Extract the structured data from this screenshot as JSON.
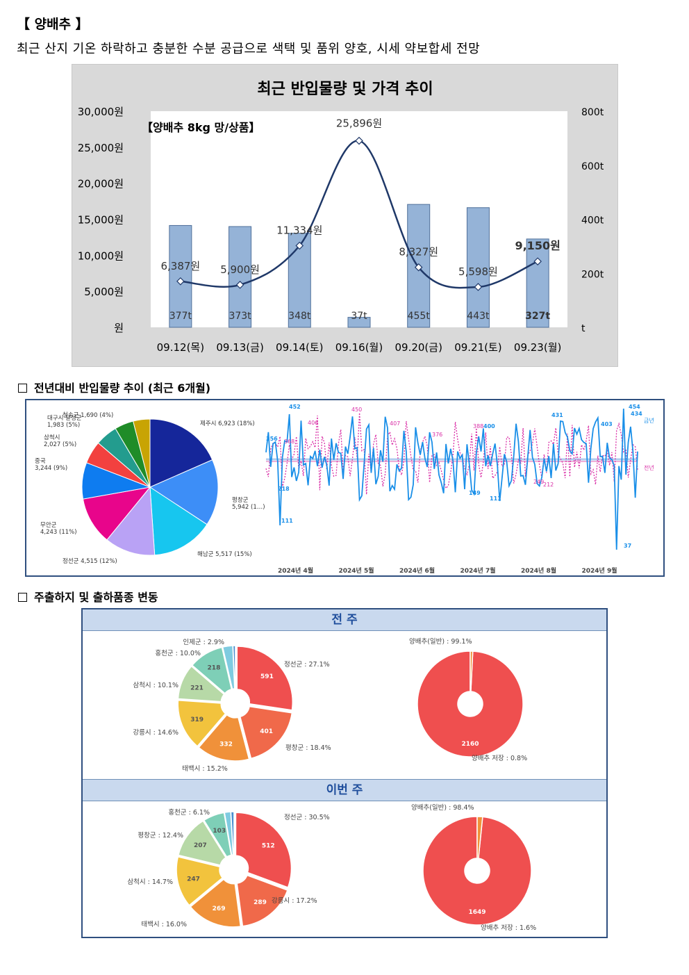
{
  "header": {
    "title": "【 양배추 】",
    "subtitle": "최근 산지 기온 하락하고 충분한 수분 공급으로 색택 및 품위 양호, 시세 약보합세 전망"
  },
  "chart_data": [
    {
      "type": "bar",
      "title": "최근 반입물량 및 가격 추이",
      "inset_label": "【양배추 8kg 망/상품】",
      "categories": [
        "09.12(목)",
        "09.13(금)",
        "09.14(토)",
        "09.16(월)",
        "09.20(금)",
        "09.21(토)",
        "09.23(월)"
      ],
      "y_left_ticks": [
        "30,000원",
        "25,000원",
        "20,000원",
        "15,000원",
        "10,000원",
        "5,000원",
        "원"
      ],
      "y_right_ticks": [
        "800t",
        "600t",
        "400t",
        "200t",
        "t"
      ],
      "ylim_left": [
        0,
        30000
      ],
      "ylim_right": [
        0,
        800
      ],
      "series": [
        {
          "name": "반입물량",
          "axis": "right",
          "type": "bar",
          "values": [
            377,
            373,
            348,
            37,
            455,
            443,
            327
          ],
          "labels": [
            "377t",
            "373t",
            "348t",
            "37t",
            "455t",
            "443t",
            "327t"
          ],
          "color": "#95b3d7"
        },
        {
          "name": "가격",
          "axis": "left",
          "type": "line",
          "values": [
            6387,
            5900,
            11334,
            25896,
            8327,
            5598,
            9150
          ],
          "labels": [
            "6,387원",
            "5,900원",
            "11,334원",
            "25,896원",
            "8,327원",
            "5,598원",
            "9,150원"
          ],
          "color": "#1f3868"
        }
      ]
    },
    {
      "type": "pie",
      "slices": [
        {
          "label": "제주시 6,923 (18%)",
          "value": 6923,
          "color": "#15269a"
        },
        {
          "label": "평창군 5,942 (1…)",
          "value": 5942,
          "color": "#3d8ef7"
        },
        {
          "label": "해남군 5,517 (15%)",
          "value": 5517,
          "color": "#17c6ef"
        },
        {
          "label": "정선군 4,515 (12%)",
          "value": 4515,
          "color": "#b9a2f5"
        },
        {
          "label": "무안군 4,243 (11%)",
          "value": 4243,
          "color": "#e8058b"
        },
        {
          "label": "중국 3,244 (9%)",
          "value": 3244,
          "color": "#0e7cf0"
        },
        {
          "label": "삼척시 2,027 (5%)",
          "value": 2027,
          "color": "#f2413f"
        },
        {
          "label": "대구시 달성군 1,983 (5%)",
          "value": 1983,
          "color": "#239c8e"
        },
        {
          "label": "청송군 1,690 (4%)",
          "value": 1690,
          "color": "#1f8c28"
        },
        {
          "label": "",
          "value": 1500,
          "color": "#c8a404"
        }
      ]
    },
    {
      "type": "line",
      "x_labels": [
        "2024년 4월",
        "2024년 5월",
        "2024년 6월",
        "2024년 7월",
        "2024년 8월",
        "2024년 9월"
      ],
      "series": [
        {
          "name": "금년",
          "color": "#1a8fe8",
          "labels": [
            "356",
            "452",
            "218",
            "111",
            "400",
            "149",
            "111",
            "431",
            "403",
            "454",
            "434",
            "37"
          ]
        },
        {
          "name": "전년",
          "color": "#d92ea6",
          "labels": [
            "368",
            "406",
            "450",
            "407",
            "376",
            "388",
            "249",
            "212"
          ]
        }
      ]
    }
  ],
  "sections": {
    "trend_title": "전년대비 반입물량 추이 (최근 6개월)",
    "ship_title": "주출하지 및 출하품종 변동"
  },
  "shipments": {
    "last_week": {
      "band": "전 주",
      "origin": [
        {
          "label": "정선군 : 27.1%",
          "value": 591,
          "color": "#ef4f4f"
        },
        {
          "label": "평창군 : 18.4%",
          "value": 401,
          "color": "#f0694a"
        },
        {
          "label": "태백시 : 15.2%",
          "value": 332,
          "color": "#f0913a"
        },
        {
          "label": "강릉시 : 14.6%",
          "value": 319,
          "color": "#f2c33d"
        },
        {
          "label": "삼척시 : 10.1%",
          "value": 221,
          "color": "#b7d9a7"
        },
        {
          "label": "홍천군 : 10.0%",
          "value": 218,
          "color": "#7ecfb7"
        },
        {
          "label": "인제군 : 2.9%",
          "value": 63,
          "color": "#7fcbe0"
        },
        {
          "label": "",
          "value": 15,
          "color": "#4a8fcf"
        }
      ],
      "variety": [
        {
          "label": "양배추(일반) : 99.1%",
          "value": 2160,
          "color": "#ef4f4f"
        },
        {
          "label": "양배추 저장 : 0.8%",
          "value": 17,
          "color": "#f0913a"
        }
      ]
    },
    "this_week": {
      "band": "이번 주",
      "origin": [
        {
          "label": "정선군 : 30.5%",
          "value": 512,
          "color": "#ef4f4f"
        },
        {
          "label": "강릉시 : 17.2%",
          "value": 289,
          "color": "#f0694a"
        },
        {
          "label": "태백시 : 16.0%",
          "value": 269,
          "color": "#f0913a"
        },
        {
          "label": "삼척시 : 14.7%",
          "value": 247,
          "color": "#f2c33d"
        },
        {
          "label": "평창군 : 12.4%",
          "value": 207,
          "color": "#b7d9a7"
        },
        {
          "label": "홍천군 : 6.1%",
          "value": 103,
          "color": "#7ecfb7"
        },
        {
          "label": "",
          "value": 30,
          "color": "#7fcbe0"
        },
        {
          "label": "",
          "value": 15,
          "color": "#4a8fcf"
        }
      ],
      "variety": [
        {
          "label": "양배추(일반) : 98.4%",
          "value": 1649,
          "color": "#ef4f4f"
        },
        {
          "label": "양배추 저장 : 1.6%",
          "value": 27,
          "color": "#f0913a"
        }
      ]
    }
  }
}
